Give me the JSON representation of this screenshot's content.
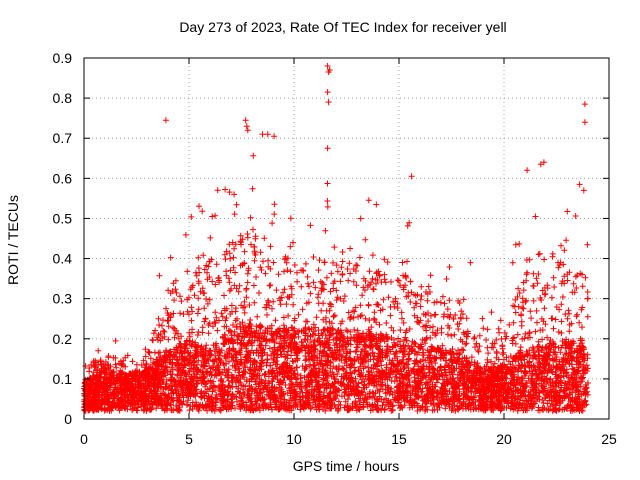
{
  "chart_data": {
    "type": "scatter",
    "title": "Day 273 of 2023, Rate Of TEC Index for receiver yell",
    "xlabel": "GPS time / hours",
    "ylabel": "ROTI / TECUs",
    "xlim": [
      0,
      25
    ],
    "ylim": [
      0,
      0.9
    ],
    "xticks": [
      0,
      5,
      10,
      15,
      20,
      25
    ],
    "yticks": [
      0,
      0.1,
      0.2,
      0.3,
      0.4,
      0.5,
      0.6,
      0.7,
      0.8,
      0.9
    ],
    "grid": true,
    "marker": "+",
    "color": "#ff0000",
    "outliers": [
      {
        "x": 3.9,
        "y": 0.745
      },
      {
        "x": 7.7,
        "y": 0.745
      },
      {
        "x": 7.75,
        "y": 0.73
      },
      {
        "x": 7.8,
        "y": 0.72
      },
      {
        "x": 8.5,
        "y": 0.71
      },
      {
        "x": 8.75,
        "y": 0.71
      },
      {
        "x": 9.05,
        "y": 0.705
      },
      {
        "x": 11.6,
        "y": 0.88
      },
      {
        "x": 11.65,
        "y": 0.865
      },
      {
        "x": 11.7,
        "y": 0.87
      },
      {
        "x": 11.6,
        "y": 0.815
      },
      {
        "x": 11.65,
        "y": 0.79
      },
      {
        "x": 11.6,
        "y": 0.675
      },
      {
        "x": 15.6,
        "y": 0.605
      },
      {
        "x": 18.4,
        "y": 0.39
      },
      {
        "x": 21.1,
        "y": 0.62
      },
      {
        "x": 21.75,
        "y": 0.635
      },
      {
        "x": 21.9,
        "y": 0.64
      },
      {
        "x": 23.85,
        "y": 0.785
      },
      {
        "x": 23.85,
        "y": 0.74
      },
      {
        "x": 23.6,
        "y": 0.585
      },
      {
        "x": 23.8,
        "y": 0.57
      }
    ],
    "envelope": {
      "hours": [
        0,
        1,
        2,
        3,
        4,
        5,
        6,
        7,
        8,
        9,
        10,
        11,
        12,
        13,
        14,
        15,
        16,
        17,
        18,
        19,
        20,
        21,
        22,
        23,
        24
      ],
      "typical_roti": [
        0.06,
        0.08,
        0.07,
        0.08,
        0.12,
        0.14,
        0.12,
        0.16,
        0.17,
        0.16,
        0.16,
        0.16,
        0.16,
        0.15,
        0.15,
        0.14,
        0.13,
        0.12,
        0.11,
        0.08,
        0.09,
        0.12,
        0.13,
        0.14,
        0.12
      ],
      "max_roti": [
        0.13,
        0.2,
        0.15,
        0.18,
        0.45,
        0.5,
        0.55,
        0.6,
        0.65,
        0.6,
        0.5,
        0.55,
        0.58,
        0.55,
        0.55,
        0.5,
        0.45,
        0.4,
        0.38,
        0.25,
        0.25,
        0.55,
        0.6,
        0.5,
        0.5
      ]
    }
  }
}
